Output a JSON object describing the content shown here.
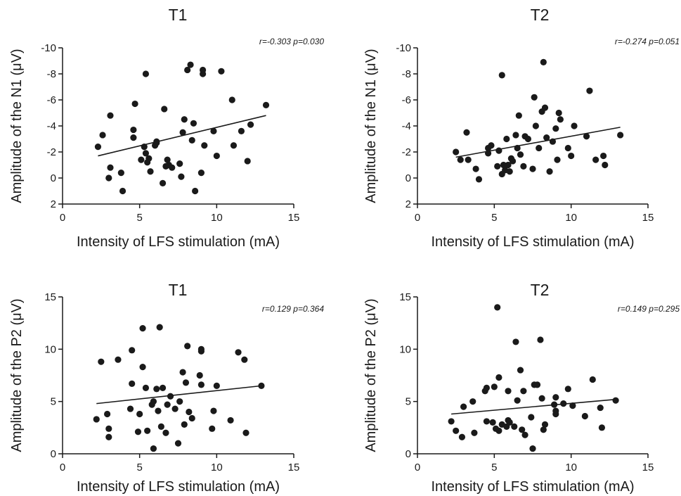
{
  "chart_data": [
    {
      "type": "scatter",
      "title": "T1",
      "xlabel": "Intensity of LFS stimulation (mA)",
      "ylabel": "Amplitude of the N1 (μV)",
      "xlim": [
        0,
        15
      ],
      "ylim": [
        2,
        -10
      ],
      "xticks": [
        "0",
        "5",
        "10",
        "15"
      ],
      "yticks": [
        "-10",
        "-8",
        "-6",
        "-4",
        "-2",
        "0",
        "2"
      ],
      "stat": "r=-0.303 p=0.030",
      "grid": false,
      "regression": {
        "x1": 2.3,
        "y1": -1.7,
        "x2": 13.2,
        "y2": -4.8
      },
      "x": [
        2.3,
        2.6,
        3.0,
        3.1,
        3.1,
        3.8,
        3.9,
        4.6,
        4.6,
        4.7,
        5.1,
        5.3,
        5.4,
        5.4,
        5.5,
        5.6,
        5.7,
        6.0,
        6.1,
        6.1,
        6.5,
        6.6,
        6.7,
        6.8,
        6.9,
        7.1,
        7.6,
        7.7,
        7.8,
        7.9,
        8.1,
        8.3,
        8.4,
        8.5,
        8.6,
        9.0,
        9.1,
        9.1,
        9.2,
        9.8,
        10.0,
        10.3,
        11.0,
        11.1,
        11.6,
        12.0,
        12.2,
        13.2
      ],
      "y": [
        -2.4,
        -3.3,
        0.0,
        -0.8,
        -4.8,
        -0.4,
        1.0,
        -3.7,
        -3.1,
        -5.7,
        -1.4,
        -2.4,
        -1.9,
        -8.0,
        -1.2,
        -1.5,
        -0.5,
        -2.5,
        -2.8,
        -2.7,
        0.4,
        -5.3,
        -0.9,
        -1.4,
        -1.0,
        -0.8,
        -1.1,
        -0.1,
        -3.5,
        -4.5,
        -8.3,
        -8.7,
        -2.9,
        -4.2,
        1.0,
        -0.4,
        -8.0,
        -8.3,
        -2.5,
        -3.6,
        -1.7,
        -8.2,
        -6.0,
        -2.5,
        -3.6,
        -1.3,
        -4.1,
        -5.6
      ]
    },
    {
      "type": "scatter",
      "title": "T2",
      "xlabel": "Intensity of LFS stimulation (mA)",
      "ylabel": "Amplitude of the N1 (μV)",
      "xlim": [
        0,
        15
      ],
      "ylim": [
        2,
        -10
      ],
      "xticks": [
        "0",
        "5",
        "10",
        "15"
      ],
      "yticks": [
        "-10",
        "-8",
        "-6",
        "-4",
        "-2",
        "0",
        "2"
      ],
      "stat": "r=-0.274 p=0.051",
      "grid": false,
      "regression": {
        "x1": 2.5,
        "y1": -1.6,
        "x2": 13.2,
        "y2": -3.9
      },
      "x": [
        2.5,
        2.8,
        3.2,
        3.3,
        3.8,
        4.0,
        4.6,
        4.6,
        4.8,
        5.2,
        5.3,
        5.5,
        5.5,
        5.6,
        5.7,
        5.8,
        5.9,
        6.0,
        6.1,
        6.2,
        6.4,
        6.5,
        6.6,
        6.7,
        6.9,
        7.0,
        7.2,
        7.5,
        7.6,
        7.7,
        7.9,
        8.1,
        8.2,
        8.3,
        8.4,
        8.6,
        8.8,
        9.0,
        9.1,
        9.2,
        9.3,
        9.8,
        10.0,
        10.2,
        11.0,
        11.2,
        11.6,
        12.1,
        12.2,
        13.2
      ],
      "y": [
        -2.0,
        -1.4,
        -3.5,
        -1.4,
        -0.7,
        0.1,
        -1.9,
        -2.3,
        -2.5,
        -0.9,
        -2.1,
        -7.9,
        -0.3,
        -1.0,
        -0.6,
        -3.0,
        -1.0,
        -0.5,
        -1.5,
        -1.3,
        -3.3,
        -2.3,
        -4.8,
        -1.8,
        -0.9,
        -3.2,
        -3.0,
        -0.7,
        -6.2,
        -4.0,
        -2.3,
        -5.1,
        -8.9,
        -5.4,
        -3.1,
        -0.5,
        -2.8,
        -3.8,
        -1.4,
        -5.0,
        -4.5,
        -2.3,
        -1.7,
        -4.0,
        -3.2,
        -6.7,
        -1.4,
        -1.7,
        -1.0,
        -3.3
      ]
    },
    {
      "type": "scatter",
      "title": "T1",
      "xlabel": "Intensity of LFS stimulation (mA)",
      "ylabel": "Amplitude of the P2 (μV)",
      "xlim": [
        0,
        15
      ],
      "ylim": [
        0,
        15
      ],
      "xticks": [
        "0",
        "5",
        "10",
        "15"
      ],
      "yticks": [
        "0",
        "5",
        "10",
        "15"
      ],
      "stat": "r=0.129 p=0.364",
      "grid": false,
      "regression": {
        "x1": 2.2,
        "y1": 4.8,
        "x2": 12.9,
        "y2": 6.5
      },
      "x": [
        2.2,
        2.5,
        2.9,
        3.0,
        3.0,
        3.6,
        4.4,
        4.5,
        4.5,
        4.9,
        5.0,
        5.2,
        5.2,
        5.4,
        5.5,
        5.8,
        5.9,
        5.9,
        6.1,
        6.2,
        6.3,
        6.4,
        6.5,
        6.7,
        6.8,
        7.0,
        7.3,
        7.5,
        7.6,
        7.8,
        7.9,
        8.0,
        8.1,
        8.2,
        8.4,
        8.9,
        9.0,
        9.0,
        9.0,
        9.7,
        9.8,
        10.0,
        10.9,
        11.4,
        11.8,
        11.9,
        12.9
      ],
      "y": [
        3.3,
        8.8,
        3.8,
        2.4,
        1.6,
        9.0,
        4.3,
        6.7,
        9.9,
        2.1,
        3.8,
        8.3,
        12.0,
        6.3,
        2.2,
        4.7,
        0.5,
        5.0,
        6.2,
        4.1,
        12.1,
        2.6,
        6.3,
        2.0,
        4.7,
        5.5,
        4.3,
        1.0,
        5.0,
        7.8,
        2.8,
        6.8,
        10.3,
        4.0,
        3.4,
        7.5,
        6.6,
        9.8,
        10.0,
        2.4,
        4.1,
        6.5,
        3.2,
        9.7,
        9.0,
        2.0,
        6.5
      ]
    },
    {
      "type": "scatter",
      "title": "T2",
      "xlabel": "Intensity of LFS stimulation (mA)",
      "ylabel": "Amplitude of the P2 (μV)",
      "xlim": [
        0,
        15
      ],
      "ylim": [
        0,
        15
      ],
      "xticks": [
        "0",
        "5",
        "10",
        "15"
      ],
      "yticks": [
        "0",
        "5",
        "10",
        "15"
      ],
      "stat": "r=0.149 p=0.295",
      "grid": false,
      "regression": {
        "x1": 2.2,
        "y1": 3.8,
        "x2": 12.9,
        "y2": 5.2
      },
      "x": [
        2.2,
        2.5,
        2.9,
        3.0,
        3.6,
        3.7,
        4.4,
        4.5,
        4.5,
        4.9,
        5.0,
        5.1,
        5.2,
        5.3,
        5.3,
        5.5,
        5.8,
        5.9,
        5.9,
        6.0,
        6.3,
        6.4,
        6.5,
        6.7,
        6.8,
        6.9,
        7.0,
        7.4,
        7.5,
        7.6,
        7.8,
        8.0,
        8.1,
        8.2,
        8.3,
        8.9,
        9.0,
        9.0,
        9.0,
        9.5,
        9.8,
        10.1,
        10.9,
        11.4,
        11.9,
        12.0,
        12.9
      ],
      "y": [
        3.1,
        2.2,
        1.6,
        4.5,
        5.0,
        2.0,
        6.0,
        3.1,
        6.3,
        3.0,
        6.4,
        2.4,
        14.0,
        7.3,
        2.2,
        2.8,
        2.6,
        6.0,
        3.2,
        3.0,
        2.6,
        10.7,
        5.1,
        8.0,
        2.3,
        6.0,
        1.8,
        3.5,
        0.5,
        6.6,
        6.6,
        10.9,
        5.3,
        2.3,
        2.8,
        4.7,
        4.1,
        5.4,
        3.8,
        4.8,
        6.2,
        4.6,
        3.6,
        7.1,
        4.4,
        2.5,
        5.1
      ]
    }
  ]
}
